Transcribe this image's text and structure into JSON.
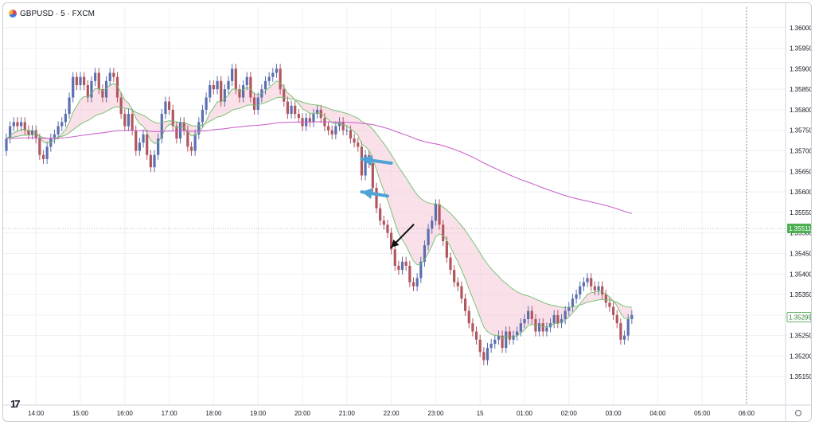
{
  "header": {
    "symbol": "GBPUSD",
    "interval": "5",
    "source": "FXCM",
    "title": "GBPUSD · 5 · FXCM"
  },
  "branding": {
    "icon": "tradingview-logo-icon"
  },
  "colors": {
    "up": "#5b6fb0",
    "down": "#b0565e",
    "ribbon_fill": "#f6c6d6",
    "ema_slow": "#cc66cc",
    "ema_band": "#6cbf6c",
    "arrow_blue": "#4fa3d6",
    "arrow_black": "#111111",
    "grid": "#eef0f3",
    "axis_text": "#131722"
  },
  "chart_data": {
    "type": "candlestick",
    "ylim": [
      1.351,
      1.3605
    ],
    "y_ticks": [
      "1.35150",
      "1.35200",
      "1.35250",
      "1.35300",
      "1.35350",
      "1.35400",
      "1.35450",
      "1.35500",
      "1.35550",
      "1.35600",
      "1.35650",
      "1.35700",
      "1.35750",
      "1.35800",
      "1.35850",
      "1.35900",
      "1.35950",
      "1.36000"
    ],
    "x_ticks": [
      {
        "label": "14:00",
        "bar": 8
      },
      {
        "label": "15:00",
        "bar": 20
      },
      {
        "label": "16:00",
        "bar": 32
      },
      {
        "label": "17:00",
        "bar": 44
      },
      {
        "label": "18:00",
        "bar": 56
      },
      {
        "label": "19:00",
        "bar": 68
      },
      {
        "label": "20:00",
        "bar": 80
      },
      {
        "label": "21:00",
        "bar": 92
      },
      {
        "label": "22:00",
        "bar": 104
      },
      {
        "label": "23:00",
        "bar": 116
      },
      {
        "label": "15",
        "bar": 128
      },
      {
        "label": "01:00",
        "bar": 140
      },
      {
        "label": "02:00",
        "bar": 152
      },
      {
        "label": "03:00",
        "bar": 164
      },
      {
        "label": "04:00",
        "bar": 176
      },
      {
        "label": "05:00",
        "bar": 188
      },
      {
        "label": "06:00",
        "bar": 200
      }
    ],
    "last_price": "1.35295",
    "reference_price": "1.35511",
    "reference_value": 1.35511,
    "cursor_bar": 200,
    "close": [
      1.3573,
      1.3576,
      1.3577,
      1.3576,
      1.3577,
      1.3575,
      1.3574,
      1.3575,
      1.3573,
      1.3569,
      1.3568,
      1.3571,
      1.3573,
      1.3574,
      1.3576,
      1.3577,
      1.3579,
      1.3583,
      1.3588,
      1.3586,
      1.3588,
      1.3586,
      1.3583,
      1.3587,
      1.3589,
      1.3585,
      1.3583,
      1.3587,
      1.3589,
      1.3588,
      1.3583,
      1.3579,
      1.3576,
      1.3579,
      1.3575,
      1.357,
      1.3572,
      1.3574,
      1.3569,
      1.3566,
      1.3569,
      1.3573,
      1.3579,
      1.3582,
      1.358,
      1.3576,
      1.3573,
      1.3577,
      1.3575,
      1.3571,
      1.357,
      1.3574,
      1.3577,
      1.358,
      1.3583,
      1.3586,
      1.3585,
      1.3587,
      1.3582,
      1.3585,
      1.3587,
      1.359,
      1.3585,
      1.3583,
      1.3586,
      1.3588,
      1.3583,
      1.358,
      1.3583,
      1.3585,
      1.3587,
      1.3588,
      1.3589,
      1.359,
      1.3585,
      1.3582,
      1.3579,
      1.3581,
      1.3579,
      1.3578,
      1.3576,
      1.3578,
      1.3577,
      1.3579,
      1.358,
      1.3578,
      1.3576,
      1.3575,
      1.3574,
      1.3576,
      1.3577,
      1.3575,
      1.3575,
      1.3573,
      1.3572,
      1.3571,
      1.3564,
      1.3569,
      1.3567,
      1.3561,
      1.3556,
      1.3553,
      1.3552,
      1.355,
      1.3546,
      1.3542,
      1.3541,
      1.3543,
      1.3542,
      1.3538,
      1.3537,
      1.3539,
      1.3543,
      1.3547,
      1.3551,
      1.3553,
      1.3557,
      1.3552,
      1.3548,
      1.3544,
      1.3541,
      1.3538,
      1.3537,
      1.3534,
      1.3531,
      1.3528,
      1.3526,
      1.3524,
      1.3521,
      1.3519,
      1.3522,
      1.3523,
      1.3524,
      1.3525,
      1.3522,
      1.3526,
      1.3524,
      1.3525,
      1.3526,
      1.3528,
      1.3529,
      1.3531,
      1.3529,
      1.3526,
      1.3528,
      1.3526,
      1.3527,
      1.3528,
      1.353,
      1.3528,
      1.3529,
      1.3531,
      1.3532,
      1.3534,
      1.3535,
      1.3537,
      1.3538,
      1.3539,
      1.3537,
      1.3536,
      1.3537,
      1.3535,
      1.3533,
      1.3532,
      1.353,
      1.3528,
      1.3524,
      1.3525,
      1.3529,
      1.353
    ],
    "open": [
      1.357,
      1.3573,
      1.3576,
      1.3577,
      1.3576,
      1.3577,
      1.3575,
      1.3574,
      1.3575,
      1.3573,
      1.3569,
      1.3568,
      1.3571,
      1.3573,
      1.3574,
      1.3576,
      1.3577,
      1.3579,
      1.3583,
      1.3588,
      1.3586,
      1.3588,
      1.3586,
      1.3583,
      1.3587,
      1.3589,
      1.3585,
      1.3583,
      1.3587,
      1.3589,
      1.3588,
      1.3583,
      1.3579,
      1.3576,
      1.3579,
      1.3575,
      1.357,
      1.3572,
      1.3574,
      1.3569,
      1.3566,
      1.3569,
      1.3573,
      1.3579,
      1.3582,
      1.358,
      1.3576,
      1.3573,
      1.3577,
      1.3575,
      1.3571,
      1.357,
      1.3574,
      1.3577,
      1.358,
      1.3583,
      1.3586,
      1.3585,
      1.3587,
      1.3582,
      1.3585,
      1.3587,
      1.359,
      1.3585,
      1.3583,
      1.3586,
      1.3588,
      1.3583,
      1.358,
      1.3583,
      1.3585,
      1.3587,
      1.3588,
      1.3589,
      1.359,
      1.3585,
      1.3582,
      1.3579,
      1.3581,
      1.3579,
      1.3578,
      1.3576,
      1.3578,
      1.3577,
      1.3579,
      1.358,
      1.3578,
      1.3576,
      1.3575,
      1.3574,
      1.3576,
      1.3577,
      1.3575,
      1.3575,
      1.3573,
      1.3572,
      1.3571,
      1.3564,
      1.3569,
      1.3567,
      1.3561,
      1.3556,
      1.3553,
      1.3552,
      1.355,
      1.3546,
      1.3542,
      1.3541,
      1.3543,
      1.3542,
      1.3538,
      1.3537,
      1.3539,
      1.3543,
      1.3547,
      1.3551,
      1.3553,
      1.3557,
      1.3552,
      1.3548,
      1.3544,
      1.3541,
      1.3538,
      1.3537,
      1.3534,
      1.3531,
      1.3528,
      1.3526,
      1.3524,
      1.3521,
      1.3519,
      1.3522,
      1.3523,
      1.3524,
      1.3525,
      1.3522,
      1.3526,
      1.3524,
      1.3525,
      1.3526,
      1.3528,
      1.3529,
      1.3531,
      1.3529,
      1.3526,
      1.3528,
      1.3526,
      1.3527,
      1.3528,
      1.353,
      1.3528,
      1.3529,
      1.3531,
      1.3532,
      1.3534,
      1.3535,
      1.3537,
      1.3538,
      1.3539,
      1.3537,
      1.3536,
      1.3537,
      1.3535,
      1.3533,
      1.3532,
      1.353,
      1.3528,
      1.3524,
      1.3525,
      1.3529
    ]
  },
  "annotations": [
    {
      "name": "blue-arrow-1",
      "kind": "blue",
      "from_bar": 104,
      "from_price": 1.3567,
      "to_bar": 96,
      "to_price": 1.3568
    },
    {
      "name": "blue-arrow-2",
      "kind": "blue",
      "from_bar": 103,
      "from_price": 1.3559,
      "to_bar": 96,
      "to_price": 1.356
    },
    {
      "name": "black-arrow",
      "kind": "black",
      "from_bar": 110,
      "from_price": 1.3552,
      "to_bar": 104,
      "to_price": 1.35465
    }
  ]
}
